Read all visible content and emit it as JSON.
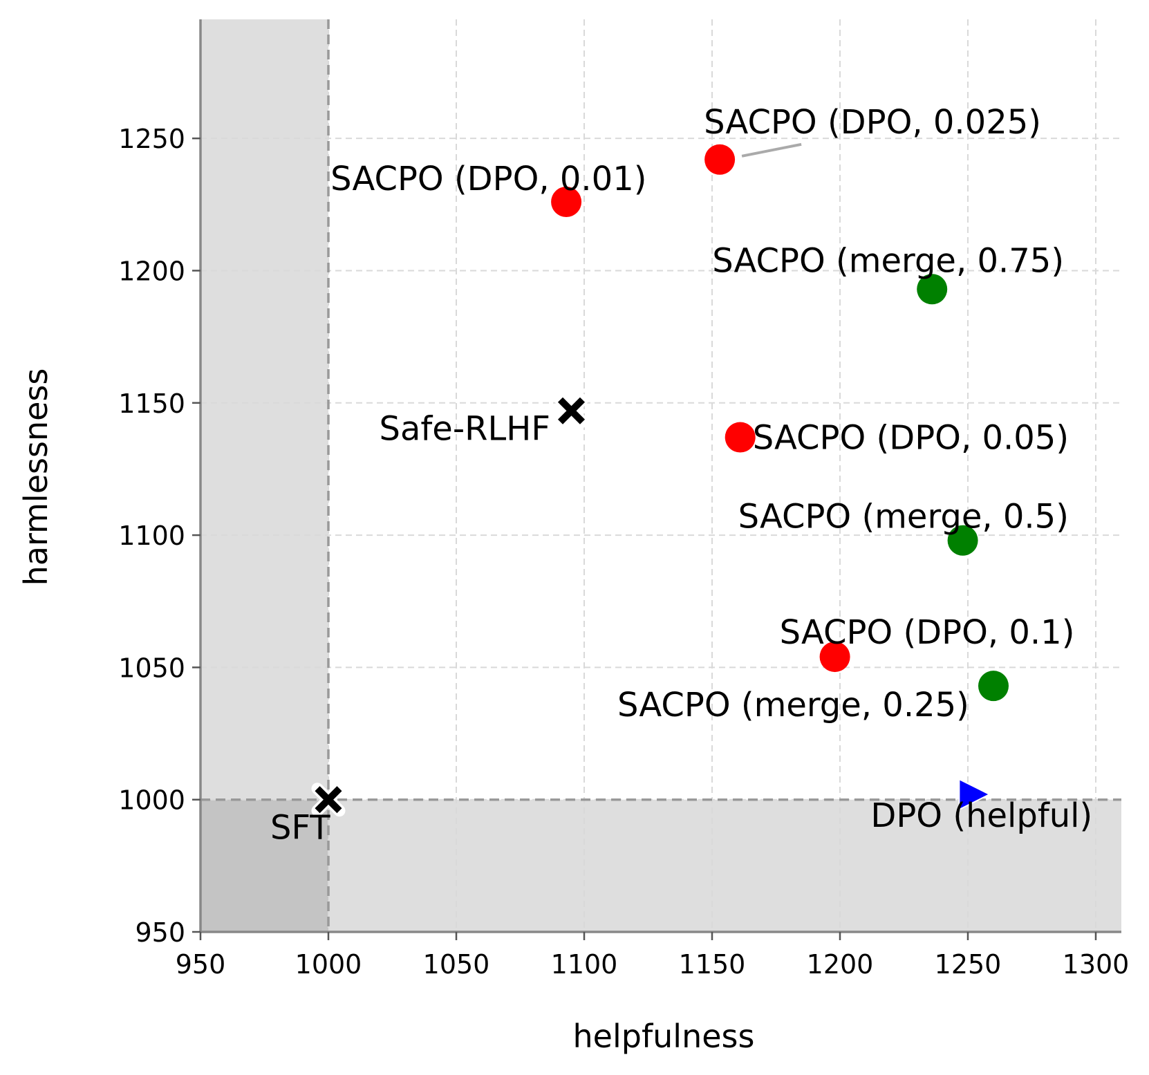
{
  "chart_data": {
    "type": "scatter",
    "title": "",
    "xlabel": "helpfulness",
    "ylabel": "harmlessness",
    "xlim": [
      950,
      1310
    ],
    "ylim": [
      950,
      1295
    ],
    "xticks": [
      950,
      1000,
      1050,
      1100,
      1150,
      1200,
      1250,
      1300
    ],
    "yticks": [
      950,
      1000,
      1050,
      1100,
      1150,
      1200,
      1250
    ],
    "grid": true,
    "reference_lines": {
      "x": 1000,
      "y": 1000
    },
    "colors": {
      "dpo_variant": "#ff0000",
      "merge_variant": "#008000",
      "dpo_helpful": "#0000ff",
      "baseline": "#000000",
      "shade": "#dedede",
      "shade_overlap": "#c4c4c4"
    },
    "points": [
      {
        "label": "SFT",
        "x": 1000,
        "y": 1000,
        "marker": "x",
        "color": "#000000"
      },
      {
        "label": "Safe-RLHF",
        "x": 1095,
        "y": 1147,
        "marker": "x",
        "color": "#000000"
      },
      {
        "label": "SACPO (DPO, 0.01)",
        "x": 1093,
        "y": 1226,
        "marker": "circle",
        "color": "#ff0000"
      },
      {
        "label": "SACPO (DPO, 0.025)",
        "x": 1153,
        "y": 1242,
        "marker": "circle",
        "color": "#ff0000"
      },
      {
        "label": "SACPO (DPO, 0.05)",
        "x": 1161,
        "y": 1137,
        "marker": "circle",
        "color": "#ff0000"
      },
      {
        "label": "SACPO (DPO, 0.1)",
        "x": 1198,
        "y": 1054,
        "marker": "circle",
        "color": "#ff0000"
      },
      {
        "label": "SACPO (merge, 0.75)",
        "x": 1236,
        "y": 1193,
        "marker": "circle",
        "color": "#008000"
      },
      {
        "label": "SACPO (merge, 0.5)",
        "x": 1248,
        "y": 1098,
        "marker": "circle",
        "color": "#008000"
      },
      {
        "label": "SACPO (merge, 0.25)",
        "x": 1260,
        "y": 1043,
        "marker": "circle",
        "color": "#008000"
      },
      {
        "label": "DPO (helpful)",
        "x": 1252,
        "y": 1002,
        "marker": "triangle-right",
        "color": "#0000ff"
      }
    ]
  }
}
